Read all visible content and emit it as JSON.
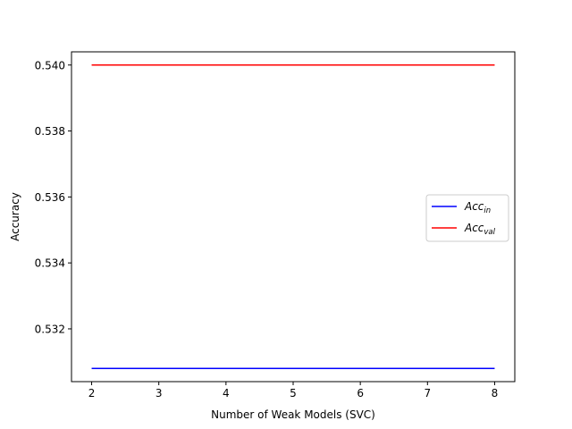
{
  "chart_data": {
    "type": "line",
    "title": "",
    "xlabel": "Number of Weak Models (SVC)",
    "ylabel": "Accuracy",
    "x": [
      2,
      3,
      4,
      5,
      6,
      7,
      8
    ],
    "xticks": [
      "2",
      "3",
      "4",
      "5",
      "6",
      "7",
      "8"
    ],
    "yticks": [
      "0.532",
      "0.534",
      "0.536",
      "0.538",
      "0.540"
    ],
    "xlim": [
      1.7,
      8.3
    ],
    "ylim": [
      0.5304,
      0.5404
    ],
    "grid": false,
    "legend_position": "center-right",
    "series": [
      {
        "name": "Acc_in",
        "legend_main": "Acc",
        "legend_sub": "in",
        "color": "#0000ff",
        "values": [
          0.5308,
          0.5308,
          0.5308,
          0.5308,
          0.5308,
          0.5308,
          0.5308
        ]
      },
      {
        "name": "Acc_val",
        "legend_main": "Acc",
        "legend_sub": "val",
        "color": "#ff0000",
        "values": [
          0.54,
          0.54,
          0.54,
          0.54,
          0.54,
          0.54,
          0.54
        ]
      }
    ]
  }
}
